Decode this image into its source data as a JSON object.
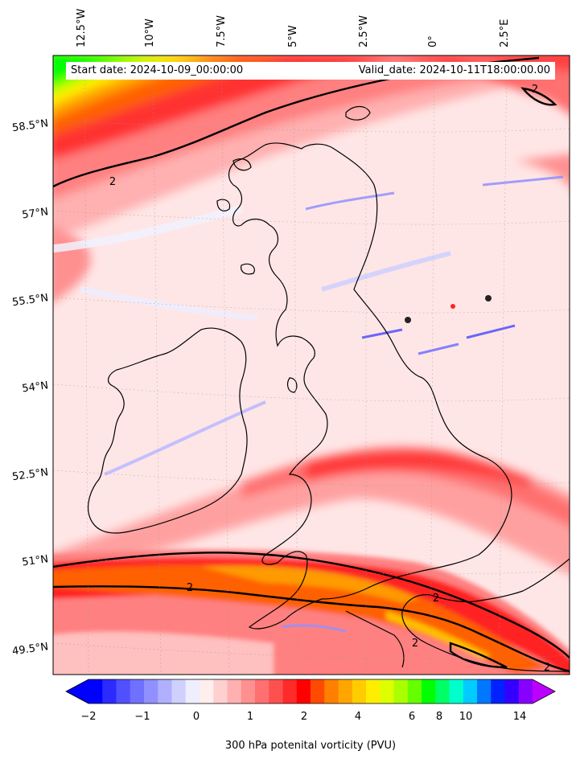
{
  "header": {
    "start_date": "Start date: 2024-10-09_00:00:00",
    "valid_date": "Valid_date: 2024-10-11T18:00:00.00"
  },
  "map": {
    "longitude_labels": [
      "12.5°W",
      "10°W",
      "7.5°W",
      "5°W",
      "2.5°W",
      "0°",
      "2.5°E"
    ],
    "latitude_labels": [
      "58.5°N",
      "57°N",
      "55.5°N",
      "54°N",
      "52.5°N",
      "51°N",
      "49.5°N"
    ],
    "contour_label": "2",
    "colors": {
      "background_low": "#ffe8e8",
      "band_mid": "#ff7070",
      "band_strong": "#ff1a1a",
      "band_orange": "#ff8c00",
      "band_yellow": "#ffff00",
      "band_green": "#00ff00",
      "negative": "#9090ff",
      "coastline": "#000000"
    }
  },
  "colorbar": {
    "tick_labels": [
      "−2",
      "−1",
      "0",
      "1",
      "2",
      "4",
      "6",
      "8",
      "10",
      "14"
    ],
    "label": "300 hPa potenital vorticity (PVU)",
    "segment_colors": [
      "#0000ff",
      "#2b2bff",
      "#5050ff",
      "#7070ff",
      "#9090ff",
      "#b0b0ff",
      "#d0d0ff",
      "#eeeeff",
      "#ffeeee",
      "#ffd0d0",
      "#ffb0b0",
      "#ff9090",
      "#ff7070",
      "#ff5050",
      "#ff2b2b",
      "#ff0000",
      "#ff4a00",
      "#ff7f00",
      "#ffa500",
      "#ffcc00",
      "#ffee00",
      "#ddff00",
      "#aaff00",
      "#66ff00",
      "#00ff00",
      "#00ff66",
      "#00ffcc",
      "#00ccff",
      "#0077ff",
      "#0022ff",
      "#3300ff",
      "#8800ff"
    ],
    "extend_low": "#0000ff",
    "extend_high": "#bb00ff"
  }
}
